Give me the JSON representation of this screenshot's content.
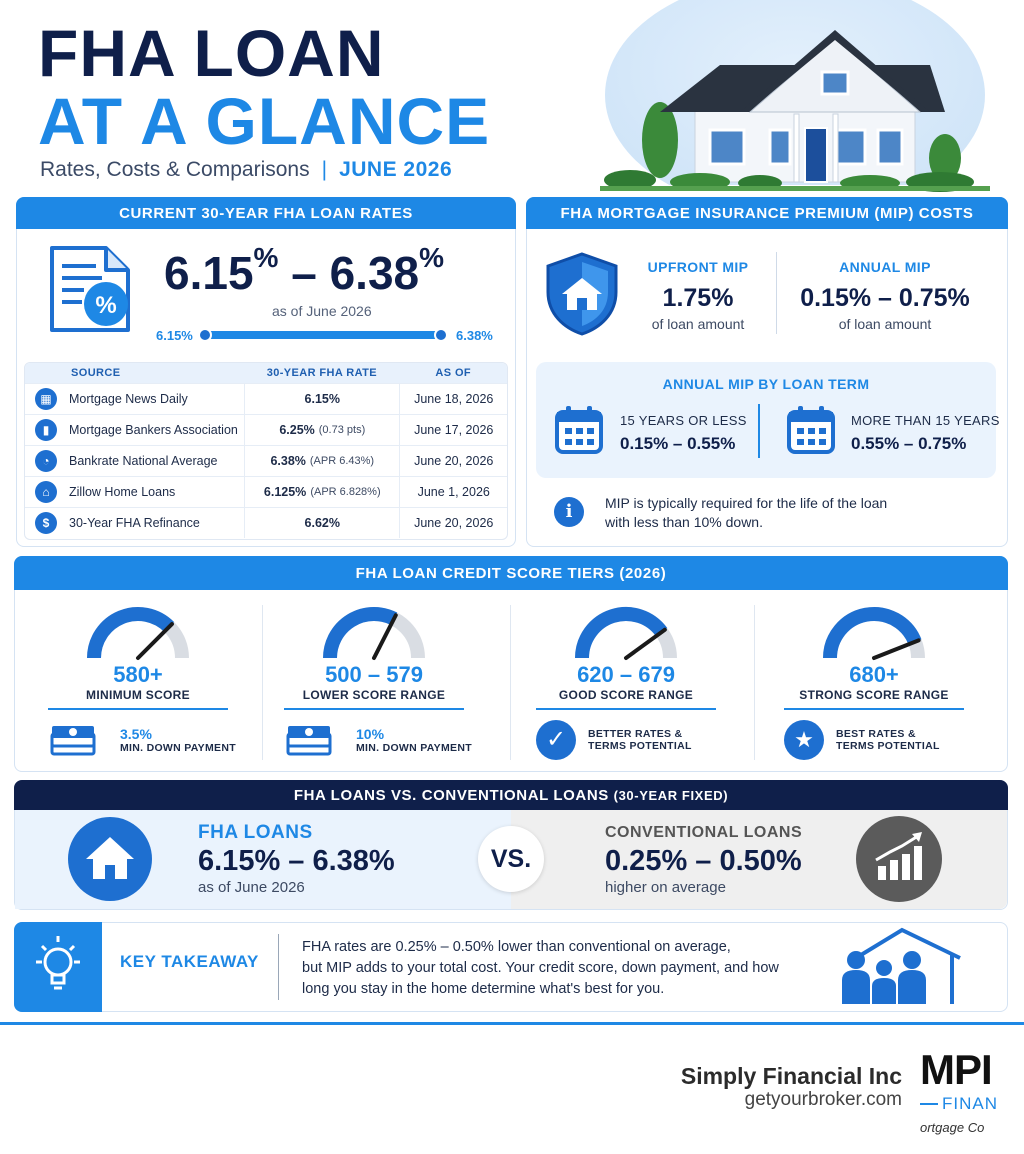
{
  "header": {
    "title_line1": "FHA LOAN",
    "title_line2": "AT A GLANCE",
    "subtitle": "Rates, Costs & Comparisons",
    "separator": "|",
    "date": "JUNE 2026"
  },
  "rates": {
    "band": "CURRENT 30-YEAR FHA LOAN RATES",
    "low": "6.15",
    "high": "6.38",
    "percent": "%",
    "dash": "–",
    "as_of": "as of June 2026",
    "slider_low": "6.15%",
    "slider_high": "6.38%",
    "table": {
      "headers": [
        "SOURCE",
        "30-YEAR FHA RATE",
        "AS OF"
      ],
      "rows": [
        {
          "icon": "calendar-icon",
          "source": "Mortgage News Daily",
          "rate": "6.15%",
          "note": "",
          "as_of": "June 18, 2026"
        },
        {
          "icon": "bar-chart-icon",
          "source": "Mortgage Bankers Association",
          "rate": "6.25%",
          "note": "(0.73 pts)",
          "as_of": "June 17, 2026"
        },
        {
          "icon": "pie-chart-icon",
          "source": "Bankrate National Average",
          "rate": "6.38%",
          "note": "(APR 6.43%)",
          "as_of": "June 20, 2026"
        },
        {
          "icon": "house-icon",
          "source": "Zillow Home Loans",
          "rate": "6.125%",
          "note": "(APR 6.828%)",
          "as_of": "June 1, 2026"
        },
        {
          "icon": "dollar-icon",
          "source": "30-Year FHA Refinance",
          "rate": "6.62%",
          "note": "",
          "as_of": "June 20, 2026"
        }
      ]
    }
  },
  "mip": {
    "band": "FHA MORTGAGE INSURANCE PREMIUM (MIP) COSTS",
    "upfront_label": "UPFRONT MIP",
    "upfront_value": "1.75%",
    "upfront_sub": "of loan amount",
    "annual_label": "ANNUAL MIP",
    "annual_value": "0.15% – 0.75%",
    "annual_sub": "of loan amount",
    "by_term_title": "ANNUAL MIP BY LOAN TERM",
    "term1_label": "15 YEARS OR LESS",
    "term1_value": "0.15% – 0.55%",
    "term2_label": "MORE THAN 15 YEARS",
    "term2_value": "0.55% – 0.75%",
    "note_line1": "MIP is typically required for the life of the loan",
    "note_line2": "with less than 10% down."
  },
  "credit": {
    "band": "FHA LOAN CREDIT SCORE TIERS (2026)",
    "tiers": [
      {
        "score": "580+",
        "label": "MINIMUM SCORE",
        "foot_top": "3.5%",
        "foot_bottom": "MIN. DOWN PAYMENT",
        "foot_icon": "cash-stack-icon",
        "level": 0.75
      },
      {
        "score": "500 – 579",
        "label": "LOWER SCORE RANGE",
        "foot_top": "10%",
        "foot_bottom": "MIN. DOWN PAYMENT",
        "foot_icon": "cash-stack-icon",
        "level": 0.65
      },
      {
        "score": "620 – 679",
        "label": "GOOD SCORE RANGE",
        "foot_top": "BETTER RATES &",
        "foot_bottom": "TERMS POTENTIAL",
        "foot_icon": "checkmark-icon",
        "level": 0.8
      },
      {
        "score": "680+",
        "label": "STRONG SCORE RANGE",
        "foot_top": "BEST RATES &",
        "foot_bottom": "TERMS POTENTIAL",
        "foot_icon": "star-icon",
        "level": 0.88
      }
    ]
  },
  "compare": {
    "band_main": "FHA LOANS VS. CONVENTIONAL LOANS",
    "band_sub": "(30-YEAR FIXED)",
    "fha_title": "FHA LOANS",
    "fha_value": "6.15% – 6.38%",
    "fha_sub": "as of June 2026",
    "vs": "VS.",
    "conv_title": "CONVENTIONAL LOANS",
    "conv_value": "0.25% – 0.50%",
    "conv_sub": "higher on average"
  },
  "takeaway": {
    "label": "KEY TAKEAWAY",
    "line1": "FHA rates are 0.25% – 0.50% lower than conventional on average,",
    "line2": "but MIP adds to your total cost. Your credit score, down payment, and how",
    "line3": "long you stay in the home determine what's best for you."
  },
  "footer": {
    "company": "Simply Financial Inc",
    "site": "getyourbroker.com",
    "logo_text": "MPI",
    "logo_sub": "FINAN",
    "logo_tag": "ortgage Co"
  },
  "colors": {
    "accent": "#1e88e5",
    "navy": "#0f1f4a",
    "light_panel": "#eaf3fd",
    "gray": "#5b5b5b"
  }
}
